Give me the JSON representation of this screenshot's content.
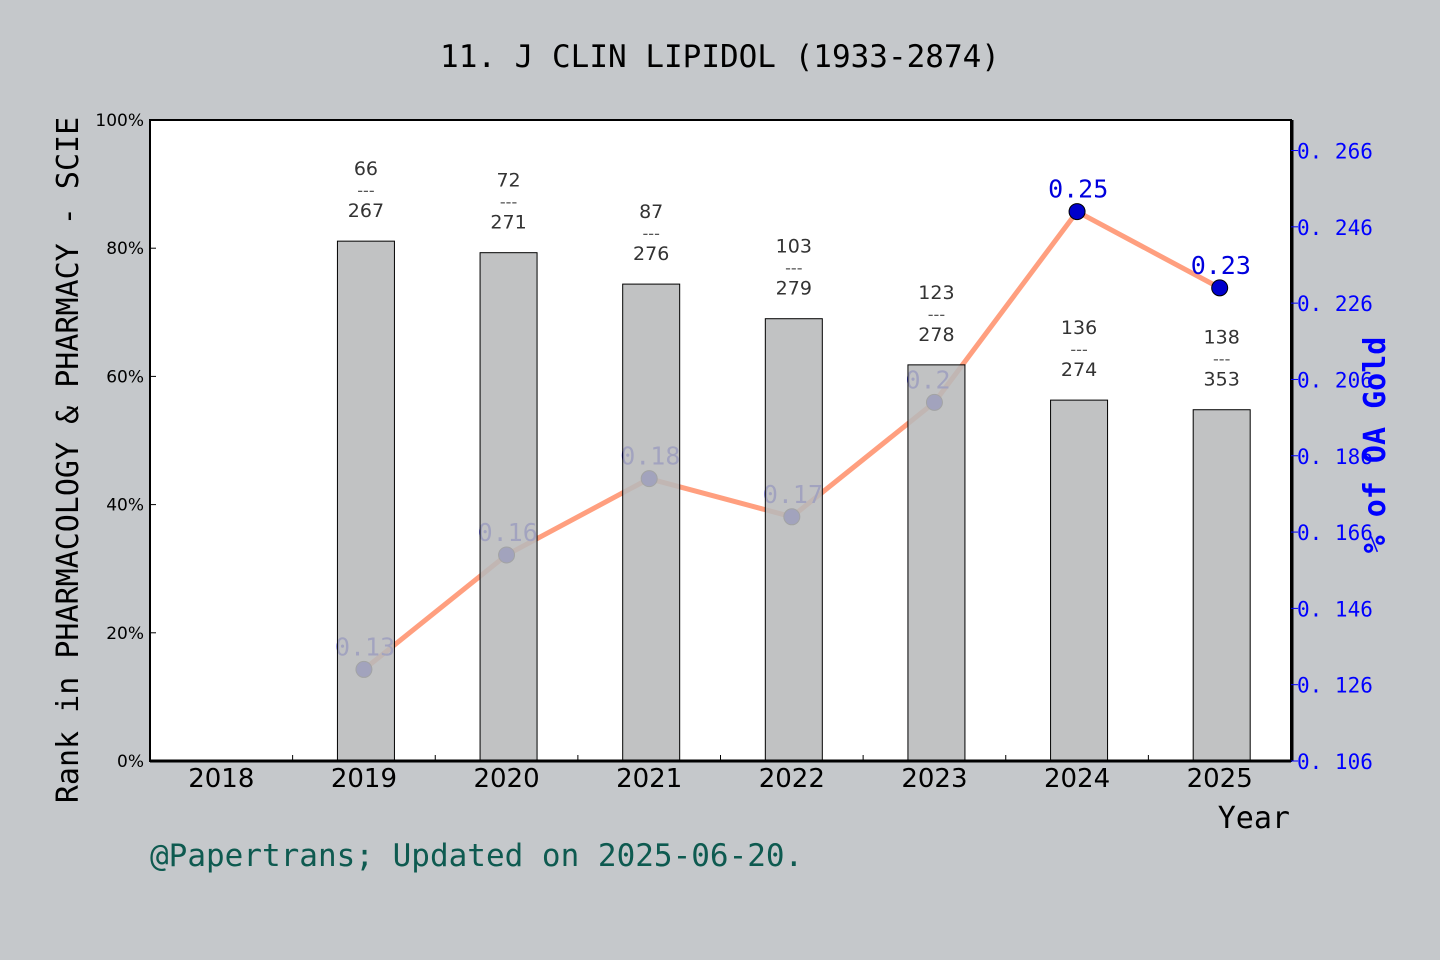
{
  "chart_data": {
    "type": "bar+line",
    "title": "11. J CLIN LIPIDOL (1933-2874)",
    "xlabel": "Year",
    "ylabel_left": "Rank in PHARMACOLOGY & PHARMACY - SCIE",
    "ylabel_right": "% of OA Gold",
    "categories": [
      "2018",
      "2019",
      "2020",
      "2021",
      "2022",
      "2023",
      "2024",
      "2025"
    ],
    "left_axis": {
      "ylim": [
        0,
        100
      ],
      "ticks": [
        "0%",
        "20%",
        "40%",
        "60%",
        "80%",
        "100%"
      ]
    },
    "right_axis": {
      "ylim": [
        0.106,
        0.274
      ],
      "ticks": [
        "0.106",
        "0.126",
        "0.146",
        "0.166",
        "0.186",
        "0.206",
        "0.226",
        "0.246",
        "0.266"
      ],
      "color": "#0000ff"
    },
    "bars": {
      "values": [
        null,
        81.1,
        79.3,
        74.4,
        69.0,
        61.8,
        56.3,
        54.8
      ],
      "rank_labels": [
        null,
        {
          "rank": "66",
          "total": "267"
        },
        {
          "rank": "72",
          "total": "271"
        },
        {
          "rank": "87",
          "total": "276"
        },
        {
          "rank": "103",
          "total": "279"
        },
        {
          "rank": "123",
          "total": "278"
        },
        {
          "rank": "136",
          "total": "274"
        },
        {
          "rank": "138",
          "total": "353"
        }
      ],
      "separator": "---",
      "color": "#b8b9bb"
    },
    "line": {
      "values": [
        null,
        0.13,
        0.16,
        0.18,
        0.17,
        0.2,
        0.25,
        0.23
      ],
      "labels": [
        null,
        "0.13",
        "0.16",
        "0.18",
        "0.17",
        "0.2",
        "0.25",
        "0.23"
      ],
      "line_color": "#ff9f7f",
      "marker_color": "#0000cc"
    },
    "grid": false
  },
  "footer": {
    "credit": "@Papertrans; Updated on 2025-06-20."
  }
}
